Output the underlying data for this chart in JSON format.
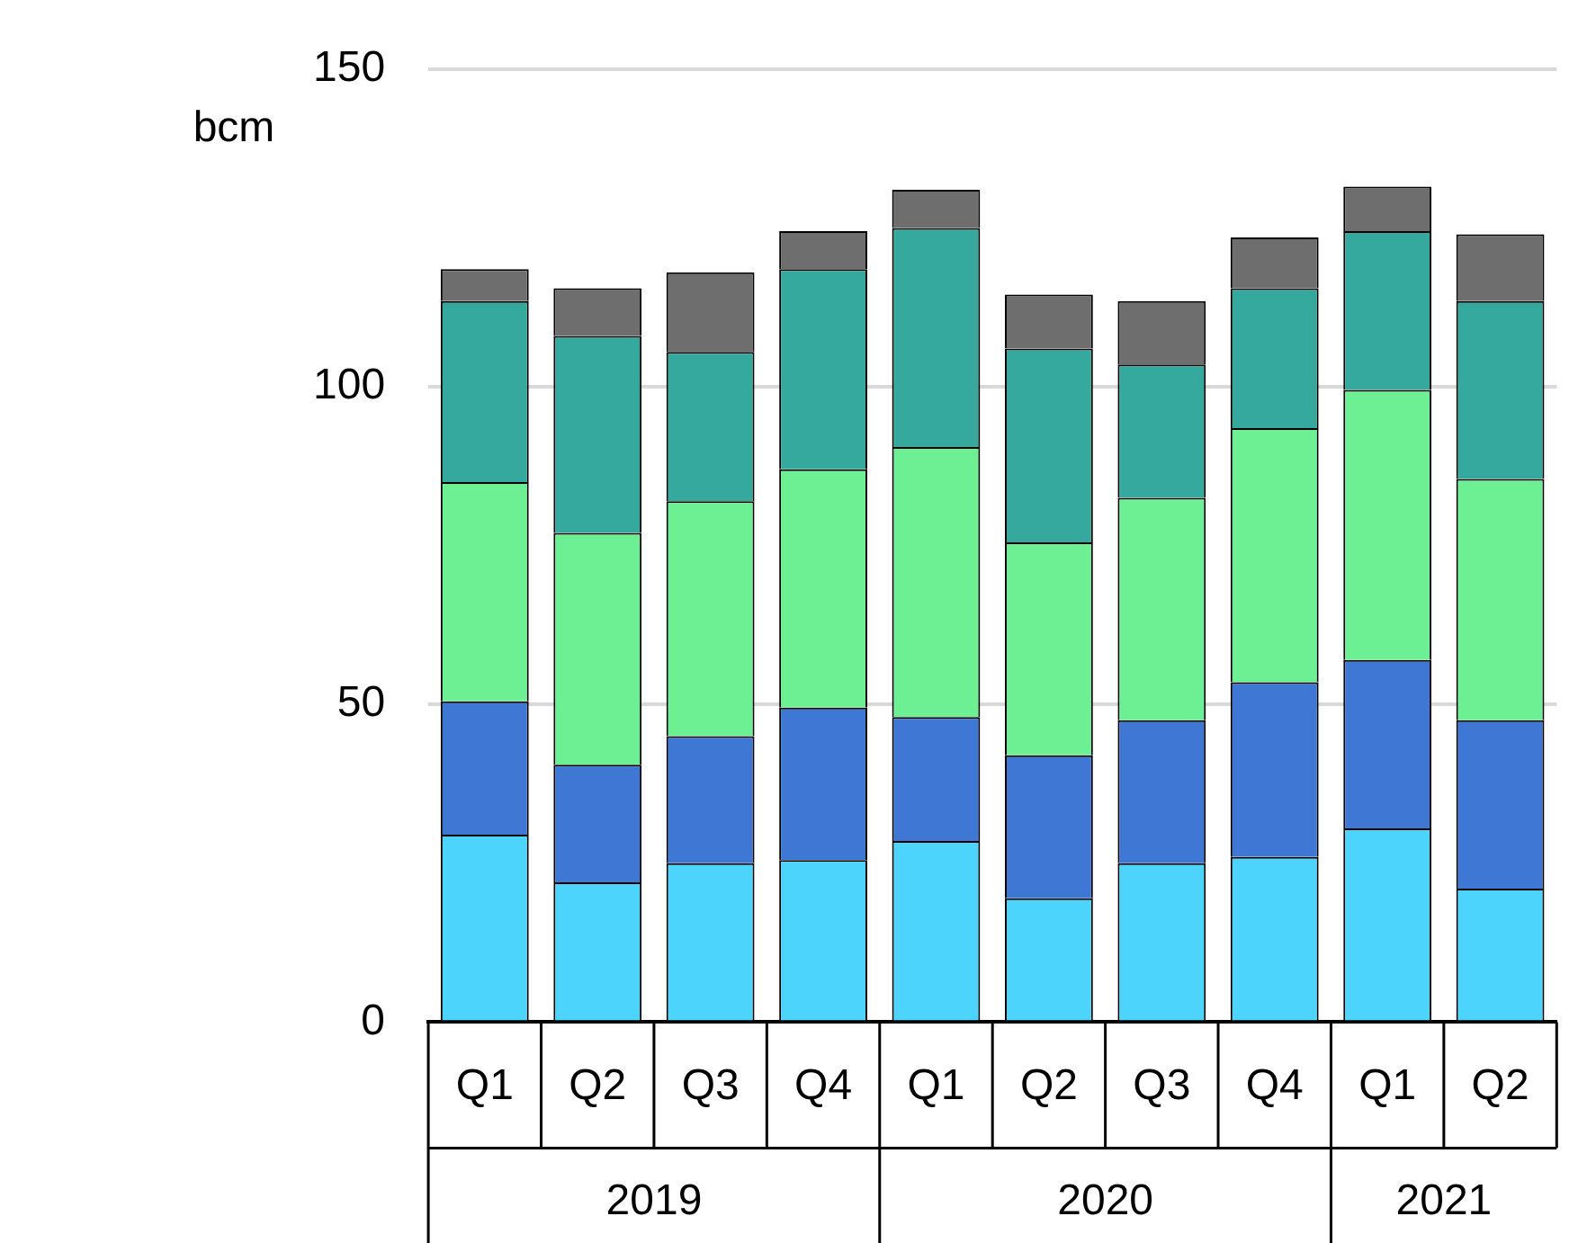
{
  "chart_data": {
    "type": "bar",
    "stacked": true,
    "ylabel": "bcm",
    "categories": [
      "Q1",
      "Q2",
      "Q3",
      "Q4",
      "Q1",
      "Q2",
      "Q3",
      "Q4",
      "Q1",
      "Q2"
    ],
    "annotations": [
      "2019",
      "2020",
      "2021"
    ],
    "series": [
      {
        "color": "#4dd4fc",
        "values": [
          29.5,
          22,
          25,
          25.5,
          28.5,
          19.5,
          25,
          26,
          30.5,
          21
        ]
      },
      {
        "color": "#3e78d4",
        "values": [
          21,
          18.5,
          20,
          24,
          19.5,
          22.5,
          22.5,
          27.5,
          26.5,
          26.5
        ]
      },
      {
        "color": "#6cf093",
        "values": [
          34.5,
          36.5,
          37,
          37.5,
          42.5,
          33.5,
          35,
          40,
          42.5,
          38
        ]
      },
      {
        "color": "#35a99d",
        "values": [
          28.5,
          31,
          23.5,
          31.5,
          34.5,
          30.5,
          21,
          22,
          25,
          28
        ]
      },
      {
        "color": "#6e6e6e",
        "values": [
          5,
          7.5,
          12.5,
          6,
          6,
          8.5,
          10,
          8,
          7,
          10.5
        ]
      }
    ],
    "ylim": [
      0,
      150
    ],
    "yticks": [
      0,
      50,
      100,
      150
    ],
    "grid": "y",
    "legend": false
  }
}
